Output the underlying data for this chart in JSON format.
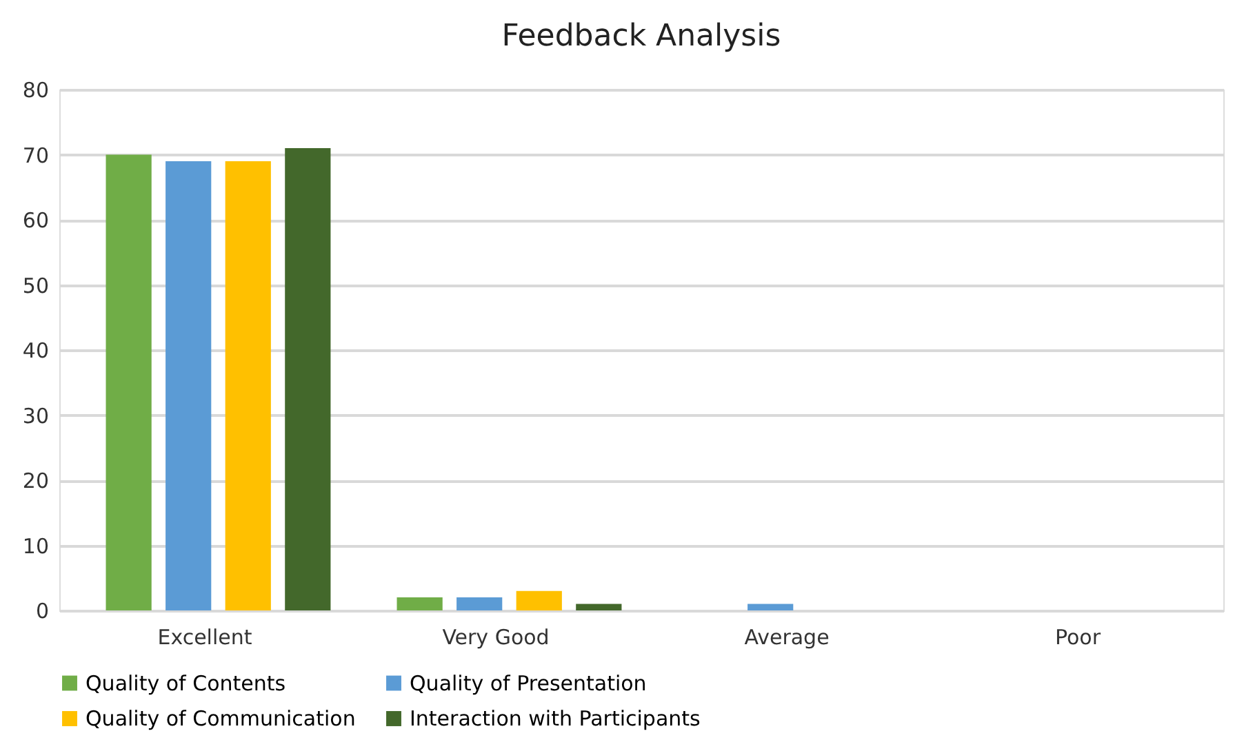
{
  "chart_data": {
    "type": "bar",
    "title": "Feedback Analysis",
    "categories": [
      "Excellent",
      "Very Good",
      "Average",
      "Poor"
    ],
    "series": [
      {
        "name": "Quality of Contents",
        "color": "#70ad47",
        "values": [
          70,
          2,
          0,
          0
        ]
      },
      {
        "name": "Quality of Presentation",
        "color": "#5b9bd5",
        "values": [
          69,
          2,
          1,
          0
        ]
      },
      {
        "name": "Quality of Communication",
        "color": "#ffc000",
        "values": [
          69,
          3,
          0,
          0
        ]
      },
      {
        "name": "Interaction with Participants",
        "color": "#43682b",
        "values": [
          71,
          1,
          0,
          0
        ]
      }
    ],
    "ylim": [
      0,
      80
    ],
    "yticks": [
      0,
      10,
      20,
      30,
      40,
      50,
      60,
      70,
      80
    ],
    "grid": "y",
    "legend": "bottom"
  }
}
